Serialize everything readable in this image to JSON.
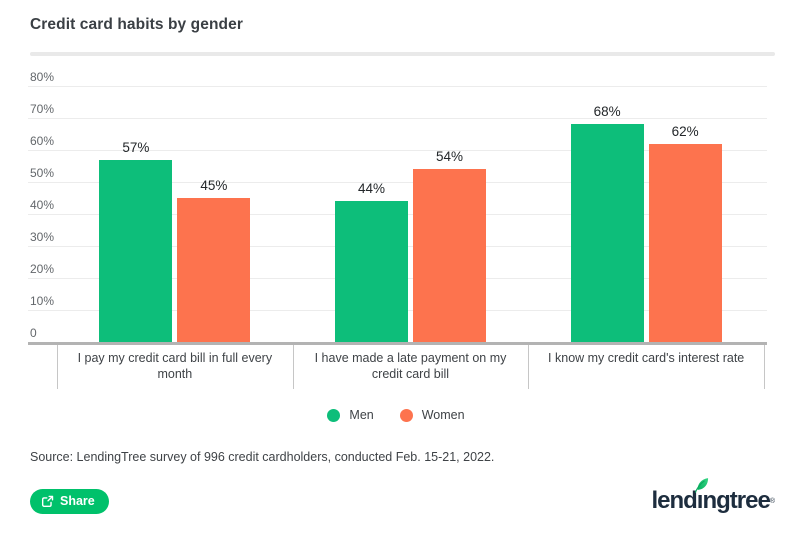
{
  "title": "Credit card habits by gender",
  "source": "Source: LendingTree survey of 996 credit cardholders, conducted Feb. 15-21, 2022.",
  "share_label": "Share",
  "logo": {
    "part1": "lend",
    "dotless_i": "ı",
    "part2": "ngtree",
    "reg": "®"
  },
  "colors": {
    "men_green": "#0dbe7a",
    "women_orange": "#fd734e",
    "share_button_green": "#00c16b",
    "logo_navy": "#1d2d3e",
    "gridline": "#ececec",
    "axis": "#b3b3b3"
  },
  "chart_data": {
    "type": "bar",
    "title": "Credit card habits by gender",
    "categories": [
      "I pay my credit card bill in full every month",
      "I have made a late payment on my credit card bill",
      "I know my credit card's interest rate"
    ],
    "series": [
      {
        "name": "Men",
        "color": "#0dbe7a",
        "values": [
          57,
          44,
          68
        ]
      },
      {
        "name": "Women",
        "color": "#fd734e",
        "values": [
          45,
          54,
          62
        ]
      }
    ],
    "value_label_format": "percent",
    "ylim": [
      0,
      80
    ],
    "yticks": [
      {
        "value": 0,
        "label": "0"
      },
      {
        "value": 10,
        "label": "10%"
      },
      {
        "value": 20,
        "label": "20%"
      },
      {
        "value": 30,
        "label": "30%"
      },
      {
        "value": 40,
        "label": "40%"
      },
      {
        "value": 50,
        "label": "50%"
      },
      {
        "value": 60,
        "label": "60%"
      },
      {
        "value": 70,
        "label": "70%"
      },
      {
        "value": 80,
        "label": "80%"
      }
    ],
    "grid": true,
    "legend_position": "bottom-center"
  }
}
